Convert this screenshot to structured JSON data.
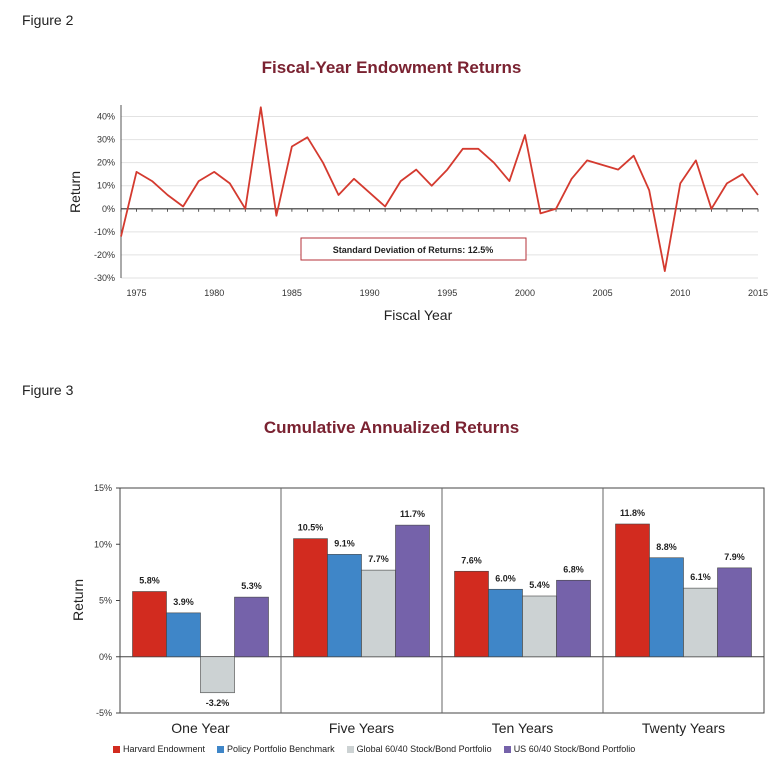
{
  "figure2_label": "Figure 2",
  "figure3_label": "Figure 3",
  "chart_data": [
    {
      "type": "line",
      "title": "Fiscal-Year Endowment Returns",
      "xlabel": "Fiscal Year",
      "ylabel": "Return",
      "xlim": [
        1974,
        2015
      ],
      "ylim": [
        -30,
        45
      ],
      "y_ticks": [
        "40%",
        "30%",
        "20%",
        "10%",
        "0%",
        "-10%",
        "-20%",
        "-30%"
      ],
      "x_ticks": [
        "1975",
        "1980",
        "1985",
        "1990",
        "1995",
        "2000",
        "2005",
        "2010",
        "2015"
      ],
      "annotation": "Standard Deviation of Returns: 12.5%",
      "series": [
        {
          "color": "#d43a2f",
          "x": [
            1974,
            1975,
            1976,
            1977,
            1978,
            1979,
            1980,
            1981,
            1982,
            1983,
            1984,
            1985,
            1986,
            1987,
            1988,
            1989,
            1990,
            1991,
            1992,
            1993,
            1994,
            1995,
            1996,
            1997,
            1998,
            1999,
            2000,
            2001,
            2002,
            2003,
            2004,
            2005,
            2006,
            2007,
            2008,
            2009,
            2010,
            2011,
            2012,
            2013,
            2014,
            2015
          ],
          "y": [
            -12,
            16,
            12,
            6,
            1,
            12,
            16,
            11,
            0,
            44,
            -3,
            27,
            31,
            20,
            6,
            13,
            7,
            1,
            12,
            17,
            10,
            17,
            26,
            26,
            20,
            12,
            32,
            -2,
            0,
            13,
            21,
            19,
            17,
            23,
            8,
            -27,
            11,
            21,
            0,
            11,
            15,
            6
          ]
        }
      ]
    },
    {
      "type": "bar",
      "title": "Cumulative Annualized Returns",
      "ylabel": "Return",
      "ylim": [
        -5,
        15
      ],
      "y_ticks": [
        "15%",
        "10%",
        "5%",
        "0%",
        "-5%"
      ],
      "categories": [
        "One Year",
        "Five Years",
        "Ten Years",
        "Twenty Years"
      ],
      "series": [
        {
          "name": "Harvard Endowment",
          "color": "#d22b1f",
          "values": [
            5.8,
            10.5,
            7.6,
            11.8
          ],
          "labels": [
            "5.8%",
            "10.5%",
            "7.6%",
            "11.8%"
          ]
        },
        {
          "name": "Policy Portfolio Benchmark",
          "color": "#3f86c8",
          "values": [
            3.9,
            9.1,
            6.0,
            8.8
          ],
          "labels": [
            "3.9%",
            "9.1%",
            "6.0%",
            "8.8%"
          ]
        },
        {
          "name": "Global 60/40 Stock/Bond Portfolio",
          "color": "#ccd2d3",
          "values": [
            -3.2,
            7.7,
            5.4,
            6.1
          ],
          "labels": [
            "-3.2%",
            "7.7%",
            "5.4%",
            "6.1%"
          ]
        },
        {
          "name": "US 60/40 Stock/Bond Portfolio",
          "color": "#7562aa",
          "values": [
            5.3,
            11.7,
            6.8,
            7.9
          ],
          "labels": [
            "5.3%",
            "11.7%",
            "6.8%",
            "7.9%"
          ]
        }
      ]
    }
  ]
}
